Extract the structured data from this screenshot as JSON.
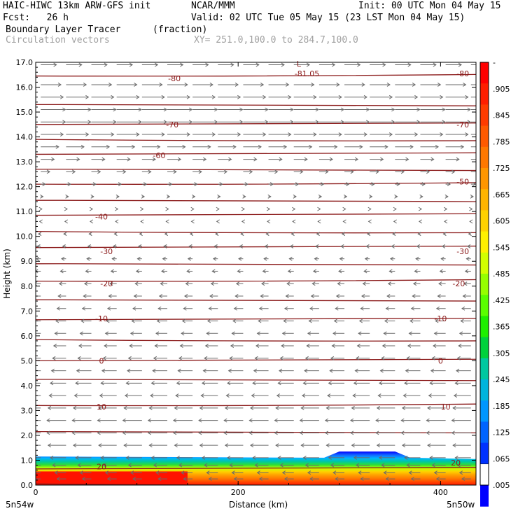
{
  "header": {
    "title_left": "HAIC-HIWC 13km ARW-GFS init",
    "title_center": "NCAR/MMM",
    "init": "Init: 00 UTC Mon 04 May 15",
    "fcst": "Fcst:   26 h",
    "valid": "Valid: 02 UTC Tue 05 May 15 (23 LST Mon 04 May 15)",
    "field_name": "Boundary Layer Tracer",
    "field_units": "(fraction)",
    "vector_name": "Circulation vectors",
    "xy_range": "XY= 251.0,100.0 to 284.7,100.0"
  },
  "chart_data": {
    "type": "heatmap",
    "xlabel": "Distance (km)",
    "ylabel": "Height (km)",
    "xlim": [
      0,
      435
    ],
    "ylim": [
      0,
      17
    ],
    "x_ticks": [
      "0",
      "200",
      "400"
    ],
    "y_ticks": [
      "0.0",
      "1.0",
      "2.0",
      "3.0",
      "4.0",
      "5.0",
      "6.0",
      "7.0",
      "8.0",
      "9.0",
      "10.0",
      "11.0",
      "12.0",
      "13.0",
      "14.0",
      "15.0",
      "16.0",
      "17.0"
    ],
    "x_endpoint_labels": {
      "left": "5n54w",
      "right": "5n50w"
    },
    "tracer_layer": {
      "top_km_left": 1.15,
      "top_km_right": 1.05,
      "bump": {
        "x_start_km": 285,
        "x_end_km": 370,
        "top_km": 1.35
      },
      "colors": [
        "#ff1a00",
        "#ff4a00",
        "#ff7a00",
        "#ffa000",
        "#ffd000",
        "#c8ff00",
        "#30e030",
        "#00c8a0",
        "#00b4ff",
        "#1464ff",
        "#0000ff"
      ]
    },
    "contours": {
      "color": "#8b1a1a",
      "levels_height_km": [
        0.05,
        0.65,
        2.15,
        3.2,
        4.25,
        5.0,
        5.85,
        6.65,
        7.45,
        8.2,
        8.9,
        9.55,
        10.2,
        10.85,
        11.45,
        12.1,
        12.7,
        13.3,
        13.9,
        14.5,
        15.3,
        16.45
      ],
      "labels": [
        {
          "text": "20",
          "x": 65,
          "y": 0.75
        },
        {
          "text": "20",
          "x": 415,
          "y": 0.9
        },
        {
          "text": "10",
          "x": 65,
          "y": 3.15
        },
        {
          "text": "10",
          "x": 405,
          "y": 3.15
        },
        {
          "text": "0",
          "x": 65,
          "y": 5.0
        },
        {
          "text": "0",
          "x": 400,
          "y": 5.0
        },
        {
          "text": "-10",
          "x": 65,
          "y": 6.7
        },
        {
          "text": "-10",
          "x": 400,
          "y": 6.7
        },
        {
          "text": "-20",
          "x": 70,
          "y": 8.1
        },
        {
          "text": "-20",
          "x": 418,
          "y": 8.1
        },
        {
          "text": "-30",
          "x": 70,
          "y": 9.4
        },
        {
          "text": "-30",
          "x": 422,
          "y": 9.4
        },
        {
          "text": "-40",
          "x": 65,
          "y": 10.8
        },
        {
          "text": "-50",
          "x": 422,
          "y": 12.2
        },
        {
          "text": "-60",
          "x": 122,
          "y": 13.25
        },
        {
          "text": "-70",
          "x": 135,
          "y": 14.5
        },
        {
          "text": "-70",
          "x": 422,
          "y": 14.5
        },
        {
          "text": "-80",
          "x": 137,
          "y": 16.35
        },
        {
          "text": "-80",
          "x": 422,
          "y": 16.55
        },
        {
          "text": "-81.05",
          "x": 268,
          "y": 16.55
        },
        {
          "text": "L",
          "x": 260,
          "y": 16.95
        }
      ]
    },
    "vectors": {
      "color": "#6a6a6a",
      "x_positions_km": [
        5,
        30,
        55,
        80,
        105,
        130,
        155,
        180,
        205,
        230,
        255,
        280,
        305,
        330,
        355,
        380,
        405,
        430
      ],
      "rows": [
        {
          "y": 16.9,
          "u": 14
        },
        {
          "y": 16.1,
          "u": 18
        },
        {
          "y": 15.6,
          "u": 20
        },
        {
          "y": 15.1,
          "u": 22
        },
        {
          "y": 14.6,
          "u": 22
        },
        {
          "y": 14.1,
          "u": 20
        },
        {
          "y": 13.6,
          "u": 16
        },
        {
          "y": 13.1,
          "u": 12
        },
        {
          "y": 12.6,
          "u": 8
        },
        {
          "y": 12.1,
          "u": 4
        },
        {
          "y": 11.6,
          "u": 2
        },
        {
          "y": 11.1,
          "u": 1
        },
        {
          "y": 10.6,
          "u": -1
        },
        {
          "y": 10.1,
          "u": -2
        },
        {
          "y": 9.6,
          "u": -3
        },
        {
          "y": 9.1,
          "u": -4
        },
        {
          "y": 8.6,
          "u": -5
        },
        {
          "y": 8.1,
          "u": -6
        },
        {
          "y": 7.6,
          "u": -7
        },
        {
          "y": 7.1,
          "u": -8
        },
        {
          "y": 6.6,
          "u": -9
        },
        {
          "y": 6.1,
          "u": -10
        },
        {
          "y": 5.6,
          "u": -11
        },
        {
          "y": 5.1,
          "u": -12
        },
        {
          "y": 4.6,
          "u": -13
        },
        {
          "y": 4.1,
          "u": -14
        },
        {
          "y": 3.6,
          "u": -15
        },
        {
          "y": 3.1,
          "u": -16
        },
        {
          "y": 2.6,
          "u": -17
        },
        {
          "y": 2.1,
          "u": -17
        },
        {
          "y": 1.6,
          "u": -16
        },
        {
          "y": 1.1,
          "u": -14
        },
        {
          "y": 0.8,
          "u": -12
        },
        {
          "y": 0.5,
          "u": -10
        },
        {
          "y": 0.25,
          "u": -8
        }
      ]
    },
    "colorbar": {
      "labels": [
        "-",
        ".905",
        ".845",
        ".785",
        ".725",
        ".665",
        ".605",
        ".545",
        ".485",
        ".425",
        ".365",
        ".305",
        ".245",
        ".185",
        ".125",
        ".065",
        ".005"
      ],
      "colors": [
        "#ff0000",
        "#ff1e00",
        "#ff3c00",
        "#ff5a00",
        "#ff7800",
        "#ff9600",
        "#ffb400",
        "#ffd200",
        "#fff000",
        "#d2ff00",
        "#96ff00",
        "#5aff00",
        "#1ef000",
        "#00d23c",
        "#00c8a0",
        "#00b4dc",
        "#0096ff",
        "#0064ff",
        "#0032ff",
        "#0000ff",
        "#0000ff"
      ]
    }
  }
}
